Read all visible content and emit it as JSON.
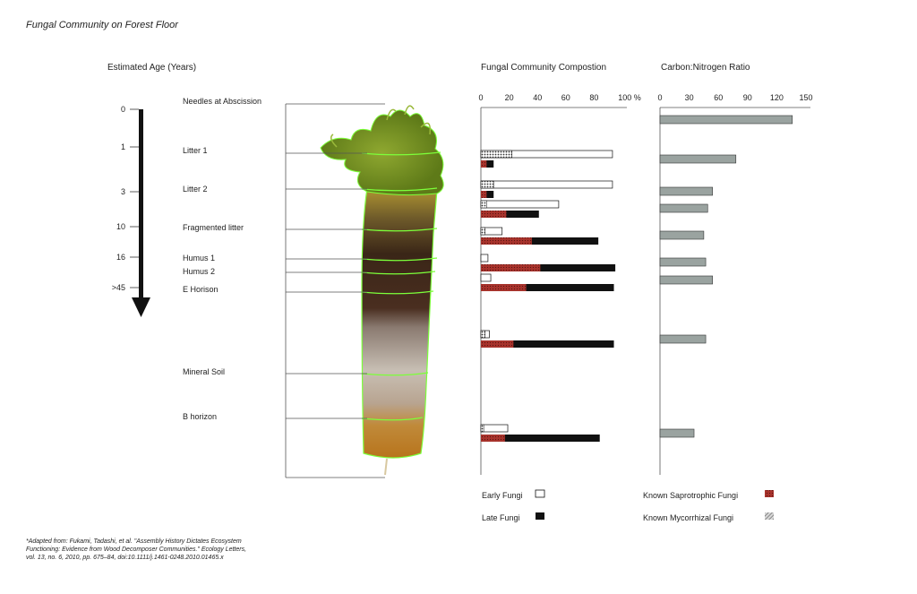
{
  "title": "Fungal Community on Forest Floor",
  "age_header": "Estimated Age (Years)",
  "colors": {
    "early": "#ffffff",
    "late": "#111111",
    "saprotrophic": "#a8332c",
    "mycorrhizal": "#8a8a8a",
    "cn_bar": "#9aa3a0"
  },
  "footnote": {
    "line1": "*Adapted from: Fukami, Tadashi, et al. \"Assembly History Dictates Ecosystem",
    "line2": "Functioning: Evidence from Wood Decomposer Communities.\" Ecology Letters,",
    "line3": "vol. 13, no. 6, 2010, pp. 675–84, doi:10.1111/j.1461-0248.2010.01465.x"
  },
  "legend": {
    "early": "Early Fungi",
    "late": "Late Fungi",
    "saprotrophic": "Known Saprotrophic Fungi",
    "mycorrhizal": "Known Mycorrhizal Fungi"
  },
  "chart_data": [
    {
      "type": "table",
      "axis_label": "Estimated Age (Years)",
      "ages": [
        "0",
        "1",
        "3",
        "10",
        "16",
        ">45"
      ],
      "layers": [
        "Needles at Abscission",
        "Litter 1",
        "Litter 2",
        "Fragmented litter",
        "Humus 1",
        "Humus 2",
        "E Horison",
        "Mineral Soil",
        "B horizon"
      ]
    },
    {
      "type": "bar",
      "title": "Fungal Community Compostion",
      "tick_labels": [
        "0",
        "20",
        "40",
        "60",
        "80",
        "100 %"
      ],
      "xlim": [
        0,
        100
      ],
      "groups": [
        {
          "myco": 22,
          "early": 93,
          "sapro": 4,
          "late": 9
        },
        {
          "myco": 9,
          "early": 93,
          "sapro": 4,
          "late": 9
        },
        {
          "myco": 4,
          "early": 55,
          "sapro": 18,
          "late": 41
        },
        {
          "myco": 3,
          "early": 15,
          "sapro": 36,
          "late": 83
        },
        {
          "myco": 0,
          "early": 5,
          "sapro": 42,
          "late": 95
        },
        {
          "myco": 0,
          "early": 7,
          "sapro": 32,
          "late": 94
        },
        {
          "myco": 3,
          "early": 6,
          "sapro": 23,
          "late": 94
        },
        {
          "myco": 2,
          "early": 19,
          "sapro": 17,
          "late": 84
        }
      ]
    },
    {
      "type": "bar",
      "title": "Carbon:Nitrogen Ratio",
      "tick_labels": [
        "0",
        "30",
        "60",
        "90",
        "120",
        "150"
      ],
      "xlim": [
        0,
        150
      ],
      "values": [
        136,
        78,
        54,
        49,
        45,
        47,
        54,
        47,
        35
      ]
    }
  ]
}
